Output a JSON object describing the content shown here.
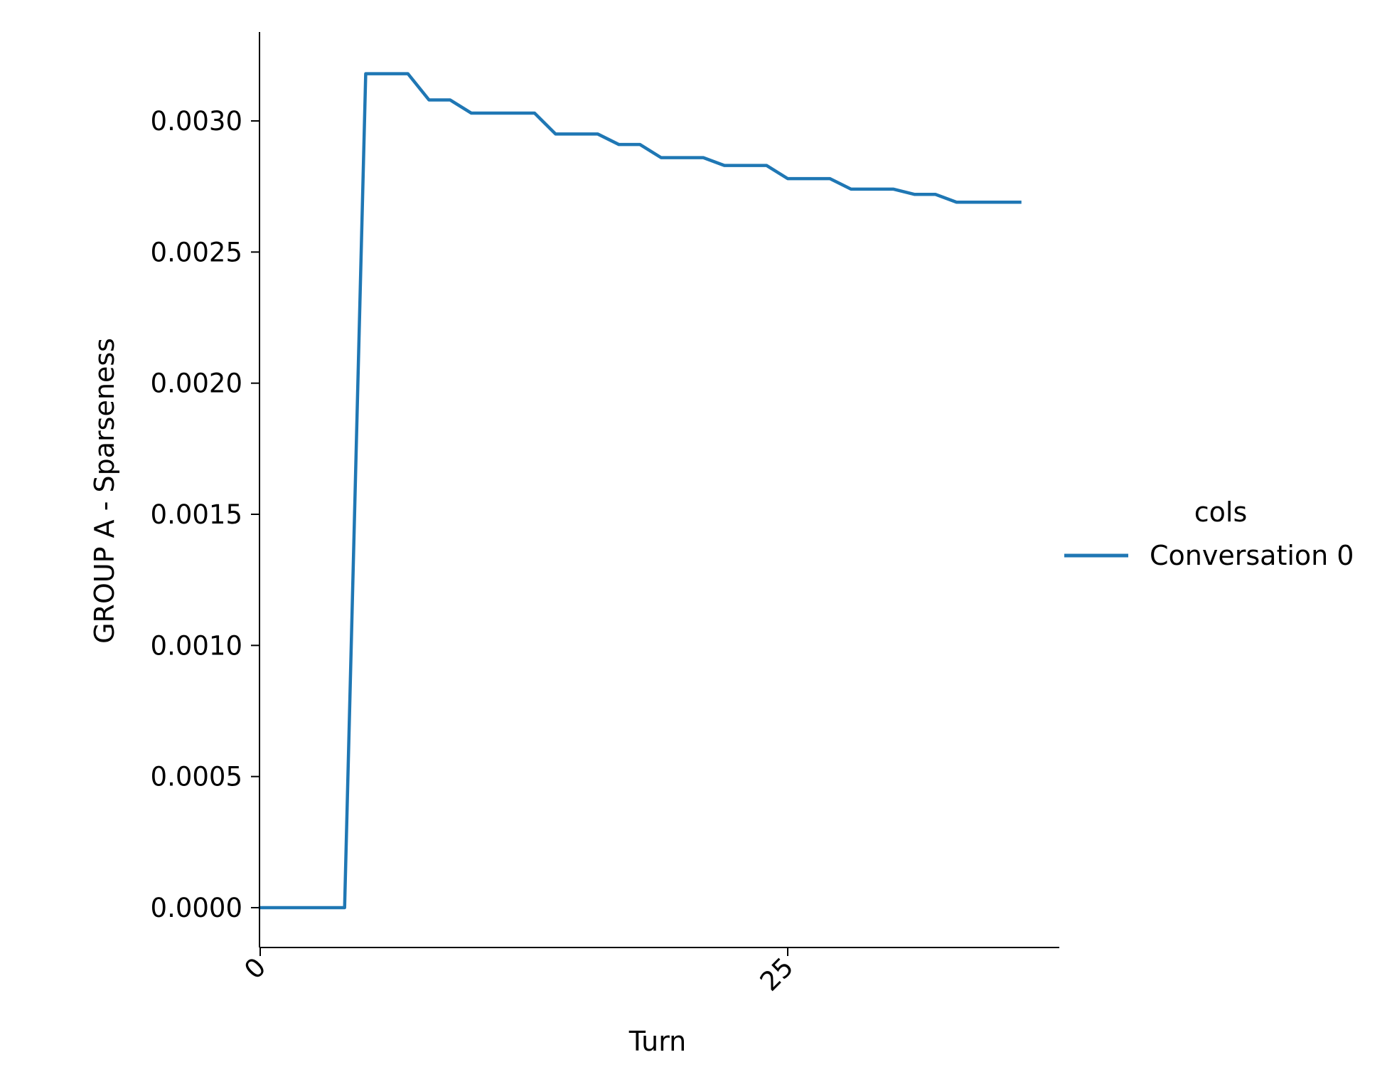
{
  "chart_data": {
    "type": "line",
    "title": "",
    "xlabel": "Turn",
    "ylabel": "GROUP A - Sparseness",
    "xlim": [
      0,
      38
    ],
    "ylim": [
      -0.00015,
      0.00335
    ],
    "x_ticks": [
      0,
      25
    ],
    "x_tick_labels": [
      "0",
      "25"
    ],
    "y_ticks": [
      0.0,
      0.0005,
      0.001,
      0.0015,
      0.002,
      0.0025,
      0.003
    ],
    "y_tick_labels": [
      "0.0000",
      "0.0005",
      "0.0010",
      "0.0015",
      "0.0020",
      "0.0025",
      "0.0030"
    ],
    "grid": false,
    "legend": {
      "title": "cols",
      "placement": "right",
      "entries": [
        "Conversation 0"
      ]
    },
    "series": [
      {
        "name": "Conversation 0",
        "color": "#1f77b4",
        "x": [
          0,
          1,
          2,
          3,
          4,
          5,
          6,
          7,
          8,
          9,
          10,
          11,
          12,
          13,
          14,
          15,
          16,
          17,
          18,
          19,
          20,
          21,
          22,
          23,
          24,
          25,
          26,
          27,
          28,
          29,
          30,
          31,
          32,
          33,
          34,
          35,
          36
        ],
        "values": [
          0.0,
          0.0,
          0.0,
          0.0,
          0.0,
          0.00318,
          0.00318,
          0.00318,
          0.00308,
          0.00308,
          0.00303,
          0.00303,
          0.00303,
          0.00303,
          0.00295,
          0.00295,
          0.00295,
          0.00291,
          0.00291,
          0.00286,
          0.00286,
          0.00286,
          0.00283,
          0.00283,
          0.00283,
          0.00278,
          0.00278,
          0.00278,
          0.00274,
          0.00274,
          0.00274,
          0.00272,
          0.00272,
          0.00269,
          0.00269,
          0.00269,
          0.00269
        ]
      }
    ]
  }
}
